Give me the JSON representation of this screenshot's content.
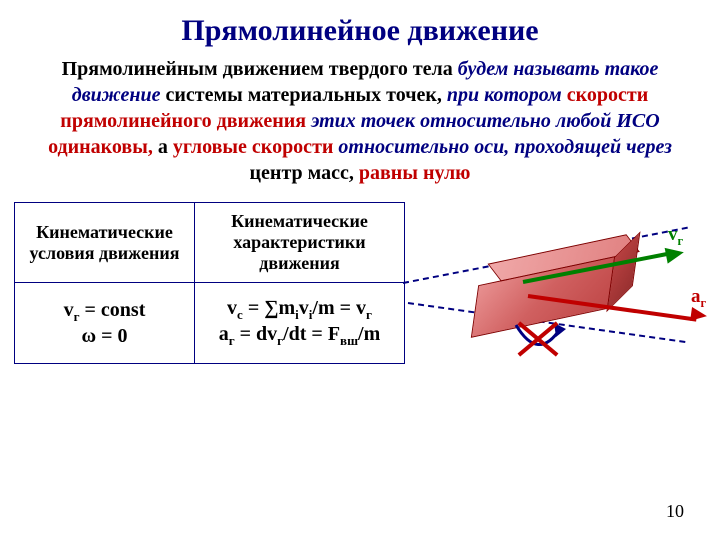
{
  "title": "Прямолинейное движение",
  "definition": {
    "parts": [
      {
        "text": "Прямолинейным движением твердого тела ",
        "cls": "def-black"
      },
      {
        "text": "будем называть такое движение ",
        "cls": "def-navy def-italic"
      },
      {
        "text": "системы материальных точек,",
        "cls": "def-black"
      },
      {
        "text": " при котором ",
        "cls": "def-navy def-italic"
      },
      {
        "text": "скорости прямолинейного движения ",
        "cls": "def-red"
      },
      {
        "text": " этих точек относительно любой ИСО ",
        "cls": "def-navy def-italic"
      },
      {
        "text": "одинаковы,",
        "cls": "def-red"
      },
      {
        "text": " а ",
        "cls": "def-black"
      },
      {
        "text": "угловые скорости ",
        "cls": "def-red"
      },
      {
        "text": "относительно оси, проходящей через ",
        "cls": "def-navy def-italic"
      },
      {
        "text": "центр масс, ",
        "cls": "def-black"
      },
      {
        "text": "равны нулю",
        "cls": "def-red"
      }
    ]
  },
  "table": {
    "headers": [
      "Кинематические условия движения",
      "Кинематические характеристики движения"
    ],
    "row": {
      "c1_l1": "v",
      "c1_l1_sub": "г",
      "c1_l1_rest": " = const",
      "c1_l2": "ω = 0",
      "c2_l1_a": "v",
      "c2_l1_a_sub": "c",
      "c2_l1_mid": " = ∑m",
      "c2_l1_mid_sub": "i",
      "c2_l1_v": "v",
      "c2_l1_v_sub": "i",
      "c2_l1_end": "/m = ",
      "c2_l1_vr": "v",
      "c2_l1_vr_sub": "г",
      "c2_l2_a": "a",
      "c2_l2_a_sub": "г",
      "c2_l2_mid": " = d",
      "c2_l2_v": "v",
      "c2_l2_v_sub": "г",
      "c2_l2_dt": "/dt = ",
      "c2_l2_F": "F",
      "c2_l2_F_sub": "вш",
      "c2_l2_end": "/m"
    }
  },
  "diagram": {
    "v_label": "v",
    "v_sub": "г",
    "v_color": "#008000",
    "a_label": "a",
    "a_sub": "г",
    "a_color": "#c00000",
    "arrow_green_color": "#008000",
    "arrow_red_color": "#c00000",
    "arrow_navy_color": "#000080",
    "dash_color": "#000080"
  },
  "page_number": "10"
}
